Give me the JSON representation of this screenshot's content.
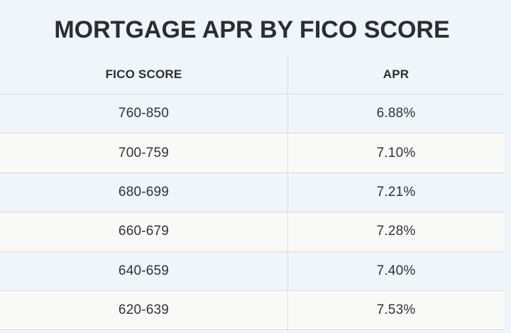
{
  "title": "MORTGAGE APR BY FICO SCORE",
  "table": {
    "columns": [
      "FICO SCORE",
      "APR"
    ],
    "rows": [
      {
        "fico": "760-850",
        "apr": "6.88%"
      },
      {
        "fico": "700-759",
        "apr": "7.10%"
      },
      {
        "fico": "680-699",
        "apr": "7.21%"
      },
      {
        "fico": "660-679",
        "apr": "7.28%"
      },
      {
        "fico": "640-659",
        "apr": "7.40%"
      },
      {
        "fico": "620-639",
        "apr": "7.53%"
      }
    ]
  },
  "colors": {
    "page_background": "#f0f5f9",
    "stripe_row_background": "#f9f9f8",
    "row_border": "#d8d9db",
    "column_divider": "#dcdde0",
    "title_text": "#2b2d30",
    "cell_text": "#2f3338"
  },
  "chart_data": {
    "type": "table",
    "title": "MORTGAGE APR BY FICO SCORE",
    "columns": [
      "FICO SCORE",
      "APR"
    ],
    "rows": [
      [
        "760-850",
        "6.88%"
      ],
      [
        "700-759",
        "7.10%"
      ],
      [
        "680-699",
        "7.21%"
      ],
      [
        "660-679",
        "7.28%"
      ],
      [
        "640-659",
        "7.40%"
      ],
      [
        "620-639",
        "7.53%"
      ]
    ],
    "fico_ranges": [
      "760-850",
      "700-759",
      "680-699",
      "660-679",
      "640-659",
      "620-639"
    ],
    "apr_percent": [
      6.88,
      7.1,
      7.21,
      7.28,
      7.4,
      7.53
    ],
    "layout": "two-column striped table, centered text, vertical divider between columns"
  }
}
